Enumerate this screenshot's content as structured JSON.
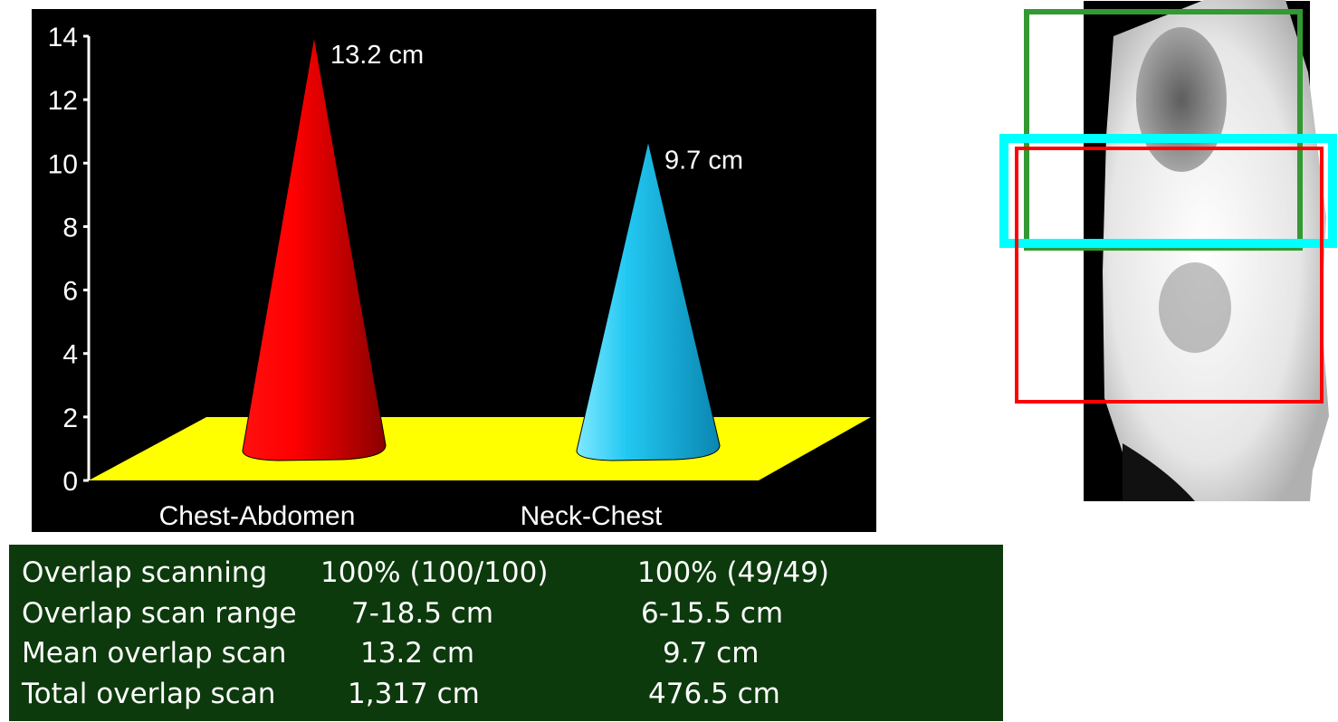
{
  "chart_data": {
    "type": "bar",
    "style": "3d-cone",
    "categories": [
      "Chest-Abdomen",
      "Neck-Chest"
    ],
    "values": [
      13.2,
      9.7
    ],
    "data_labels": [
      "13.2 cm",
      "9.7 cm"
    ],
    "ylim": [
      0,
      14
    ],
    "yticks": [
      0,
      2,
      4,
      6,
      8,
      10,
      12,
      14
    ],
    "grid": false,
    "colors": {
      "background": "#000000",
      "floor": "#ffff00",
      "series": [
        "#ff0000",
        "#1ec8f0"
      ],
      "text": "#ffffff"
    }
  },
  "stats": {
    "rows": [
      {
        "label": "Overlap scanning",
        "a": "100% (100/100)",
        "b": "100% (49/49)"
      },
      {
        "label": "Overlap scan range",
        "a": "7-18.5 cm",
        "b": "6-15.5 cm"
      },
      {
        "label": "Mean overlap scan",
        "a": "13.2 cm",
        "b": "9.7 cm"
      },
      {
        "label": "Total overlap scan",
        "a": "1,317 cm",
        "b": "476.5 cm"
      }
    ],
    "background": "#0c3a0c"
  },
  "xray": {
    "description_icon": "lateral-ct-scout-image",
    "boxes": [
      {
        "name": "neck-chest-scan-range",
        "color": "#339933"
      },
      {
        "name": "overlap-region",
        "color": "#00ffff"
      },
      {
        "name": "chest-abdomen-scan-range",
        "color": "#ff0000"
      }
    ]
  }
}
